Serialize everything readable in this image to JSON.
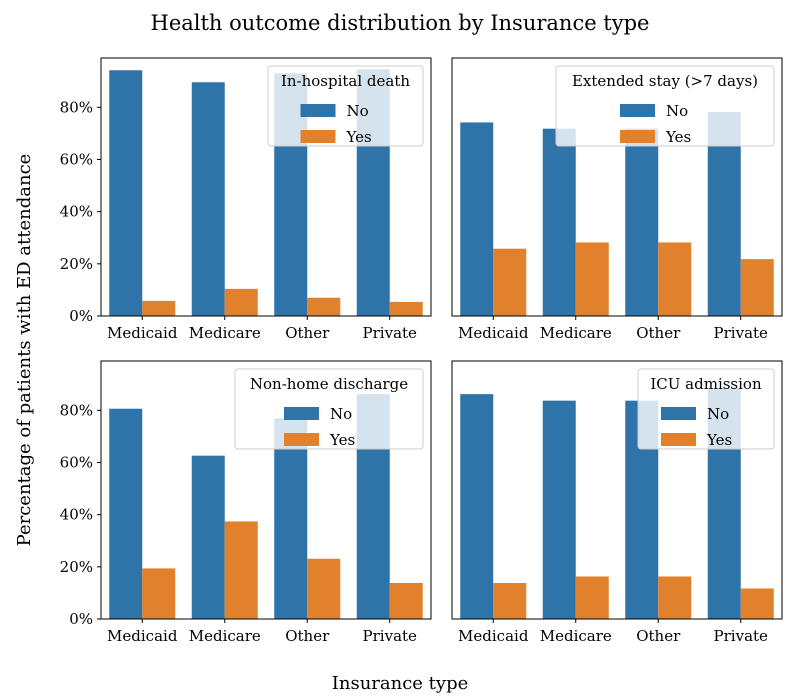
{
  "figure": {
    "title": "Health outcome distribution by Insurance type",
    "xlabel": "Insurance type",
    "ylabel": "Percentage of patients with ED attendance"
  },
  "colors": {
    "No": "#2f74a8",
    "Yes": "#e1812c"
  },
  "chart_data": [
    {
      "type": "bar",
      "legend_title": "In-hospital death",
      "legend_position": "top-right",
      "categories": [
        "Medicaid",
        "Medicare",
        "Other",
        "Private"
      ],
      "series": [
        {
          "name": "No",
          "values": [
            94.2,
            89.6,
            93.0,
            94.6
          ]
        },
        {
          "name": "Yes",
          "values": [
            5.8,
            10.4,
            7.0,
            5.4
          ]
        }
      ],
      "ylim": [
        0,
        100
      ],
      "yticks": [
        "0%",
        "20%",
        "40%",
        "60%",
        "80%"
      ]
    },
    {
      "type": "bar",
      "legend_title": "Extended stay (>7 days)",
      "legend_position": "top-right",
      "categories": [
        "Medicaid",
        "Medicare",
        "Other",
        "Private"
      ],
      "series": [
        {
          "name": "No",
          "values": [
            74.2,
            71.8,
            71.8,
            78.2
          ]
        },
        {
          "name": "Yes",
          "values": [
            25.8,
            28.2,
            28.2,
            21.8
          ]
        }
      ],
      "ylim": [
        0,
        100
      ],
      "yticks": []
    },
    {
      "type": "bar",
      "legend_title": "Non-home discharge",
      "legend_position": "top-right",
      "categories": [
        "Medicaid",
        "Medicare",
        "Other",
        "Private"
      ],
      "series": [
        {
          "name": "No",
          "values": [
            80.6,
            62.6,
            76.9,
            86.2
          ]
        },
        {
          "name": "Yes",
          "values": [
            19.4,
            37.4,
            23.1,
            13.8
          ]
        }
      ],
      "ylim": [
        0,
        100
      ],
      "yticks": [
        "0%",
        "20%",
        "40%",
        "60%",
        "80%"
      ]
    },
    {
      "type": "bar",
      "legend_title": "ICU admission",
      "legend_position": "top-right",
      "categories": [
        "Medicaid",
        "Medicare",
        "Other",
        "Private"
      ],
      "series": [
        {
          "name": "No",
          "values": [
            86.2,
            83.7,
            83.7,
            88.3
          ]
        },
        {
          "name": "Yes",
          "values": [
            13.8,
            16.3,
            16.3,
            11.7
          ]
        }
      ],
      "ylim": [
        0,
        100
      ],
      "yticks": []
    }
  ]
}
